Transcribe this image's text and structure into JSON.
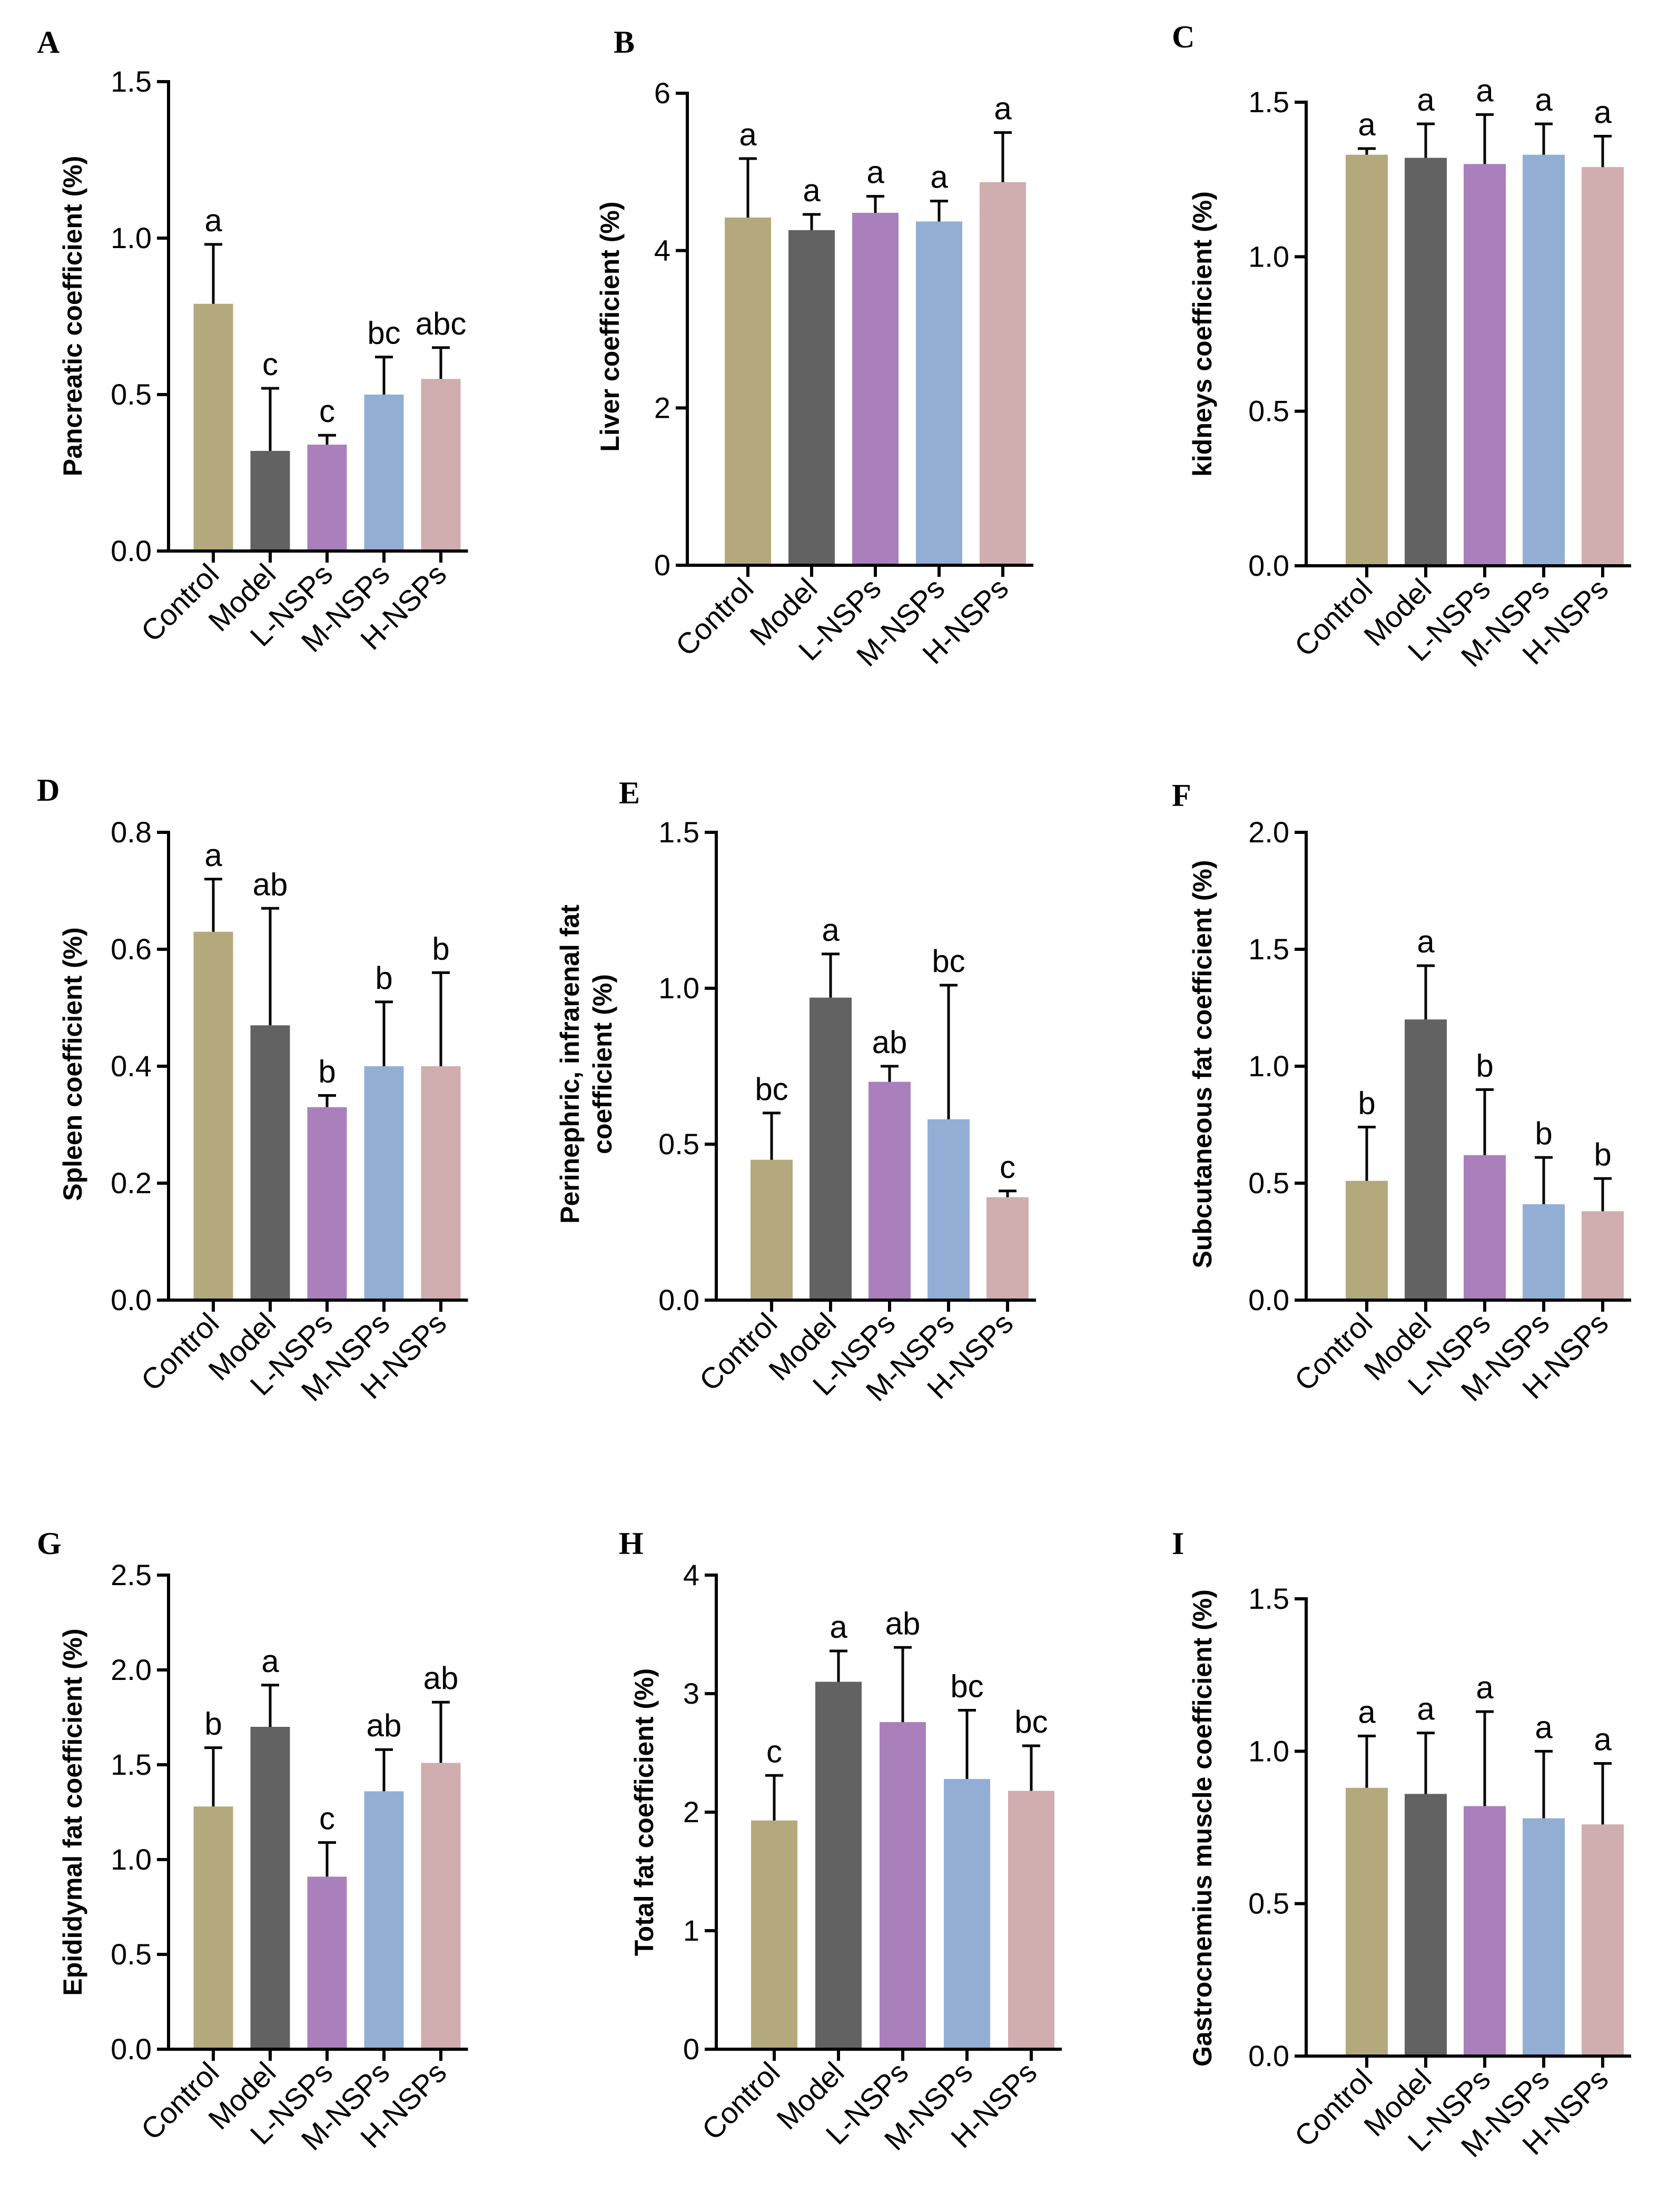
{
  "colors": {
    "Control": "#b3a97c",
    "Model": "#626262",
    "L-NSPs": "#aa80bc",
    "M-NSPs": "#93aed4",
    "H-NSPs": "#d0adaf",
    "axis": "#000000"
  },
  "chart_data": [
    {
      "panel": "A",
      "type": "bar",
      "categories": [
        "Control",
        "Model",
        "L-NSPs",
        "M-NSPs",
        "H-NSPs"
      ],
      "values": [
        0.79,
        0.32,
        0.34,
        0.5,
        0.55
      ],
      "errors": [
        0.19,
        0.2,
        0.03,
        0.12,
        0.1
      ],
      "labels": [
        "a",
        "c",
        "c",
        "bc",
        "abc"
      ],
      "ylabel": "Pancreatic coefficient (%)",
      "ylim": [
        0,
        1.5
      ],
      "yticks": [
        "0.0",
        "0.5",
        "1.0",
        "1.5"
      ]
    },
    {
      "panel": "B",
      "type": "bar",
      "categories": [
        "Control",
        "Model",
        "L-NSPs",
        "M-NSPs",
        "H-NSPs"
      ],
      "values": [
        4.42,
        4.26,
        4.48,
        4.37,
        4.87
      ],
      "errors": [
        0.75,
        0.2,
        0.21,
        0.26,
        0.63
      ],
      "labels": [
        "a",
        "a",
        "a",
        "a",
        "a"
      ],
      "ylabel": "Liver coefficient (%)",
      "ylim": [
        0,
        6
      ],
      "yticks": [
        "0",
        "2",
        "4",
        "6"
      ]
    },
    {
      "panel": "C",
      "type": "bar",
      "categories": [
        "Control",
        "Model",
        "L-NSPs",
        "M-NSPs",
        "H-NSPs"
      ],
      "values": [
        1.33,
        1.32,
        1.3,
        1.33,
        1.29
      ],
      "errors": [
        0.02,
        0.11,
        0.16,
        0.1,
        0.1
      ],
      "labels": [
        "a",
        "a",
        "a",
        "a",
        "a"
      ],
      "ylabel": "kidneys coefficient (%)",
      "ylim": [
        0,
        1.5
      ],
      "yticks": [
        "0.0",
        "0.5",
        "1.0",
        "1.5"
      ]
    },
    {
      "panel": "D",
      "type": "bar",
      "categories": [
        "Control",
        "Model",
        "L-NSPs",
        "M-NSPs",
        "H-NSPs"
      ],
      "values": [
        0.63,
        0.47,
        0.33,
        0.4,
        0.4
      ],
      "errors": [
        0.09,
        0.2,
        0.02,
        0.11,
        0.16
      ],
      "labels": [
        "a",
        "ab",
        "b",
        "b",
        "b"
      ],
      "ylabel": "Spleen coefficient (%)",
      "ylim": [
        0,
        0.8
      ],
      "yticks": [
        "0.0",
        "0.2",
        "0.4",
        "0.6",
        "0.8"
      ]
    },
    {
      "panel": "E",
      "type": "bar",
      "categories": [
        "Control",
        "Model",
        "L-NSPs",
        "M-NSPs",
        "H-NSPs"
      ],
      "values": [
        0.45,
        0.97,
        0.7,
        0.58,
        0.33
      ],
      "errors": [
        0.15,
        0.14,
        0.05,
        0.43,
        0.02
      ],
      "labels": [
        "bc",
        "a",
        "ab",
        "bc",
        "c"
      ],
      "ylabel": [
        "Perinephric, infrarenal fat",
        "coefficient (%)"
      ],
      "ylim": [
        0,
        1.5
      ],
      "yticks": [
        "0.0",
        "0.5",
        "1.0",
        "1.5"
      ]
    },
    {
      "panel": "F",
      "type": "bar",
      "categories": [
        "Control",
        "Model",
        "L-NSPs",
        "M-NSPs",
        "H-NSPs"
      ],
      "values": [
        0.51,
        1.2,
        0.62,
        0.41,
        0.38
      ],
      "errors": [
        0.23,
        0.23,
        0.28,
        0.2,
        0.14
      ],
      "labels": [
        "b",
        "a",
        "b",
        "b",
        "b"
      ],
      "ylabel": "Subcutaneous fat coefficient (%)",
      "ylim": [
        0,
        2.0
      ],
      "yticks": [
        "0.0",
        "0.5",
        "1.0",
        "1.5",
        "2.0"
      ]
    },
    {
      "panel": "G",
      "type": "bar",
      "categories": [
        "Control",
        "Model",
        "L-NSPs",
        "M-NSPs",
        "H-NSPs"
      ],
      "values": [
        1.28,
        1.7,
        0.91,
        1.36,
        1.51
      ],
      "errors": [
        0.31,
        0.22,
        0.18,
        0.22,
        0.32
      ],
      "labels": [
        "b",
        "a",
        "c",
        "ab",
        "ab"
      ],
      "ylabel": "Epididymal fat coefficient (%)",
      "ylim": [
        0,
        2.5
      ],
      "yticks": [
        "0.0",
        "0.5",
        "1.0",
        "1.5",
        "2.0",
        "2.5"
      ]
    },
    {
      "panel": "H",
      "type": "bar",
      "categories": [
        "Control",
        "Model",
        "L-NSPs",
        "M-NSPs",
        "H-NSPs"
      ],
      "values": [
        1.93,
        3.1,
        2.76,
        2.28,
        2.18
      ],
      "errors": [
        0.38,
        0.26,
        0.63,
        0.58,
        0.38
      ],
      "labels": [
        "c",
        "a",
        "ab",
        "bc",
        "bc"
      ],
      "ylabel": "Total fat coefficient (%)",
      "ylim": [
        0,
        4
      ],
      "yticks": [
        "0",
        "1",
        "2",
        "3",
        "4"
      ]
    },
    {
      "panel": "I",
      "type": "bar",
      "categories": [
        "Control",
        "Model",
        "L-NSPs",
        "M-NSPs",
        "H-NSPs"
      ],
      "values": [
        0.88,
        0.86,
        0.82,
        0.78,
        0.76
      ],
      "errors": [
        0.17,
        0.2,
        0.31,
        0.22,
        0.2
      ],
      "labels": [
        "a",
        "a",
        "a",
        "a",
        "a"
      ],
      "ylabel": "Gastrocnemius muscle coefficient (%)",
      "ylim": [
        0,
        1.5
      ],
      "yticks": [
        "0.0",
        "0.5",
        "1.0",
        "1.5"
      ]
    }
  ]
}
